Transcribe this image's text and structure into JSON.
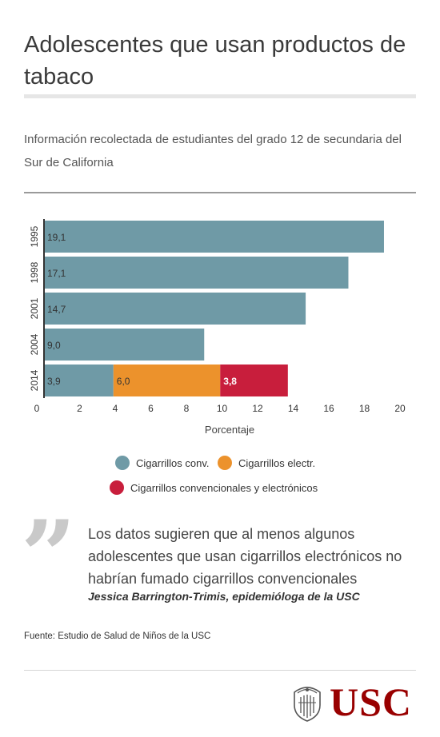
{
  "title": "Adolescentes que usan productos de tabaco",
  "subtitle": "Información recolectada de estudiantes del grado 12 de secundaria del Sur de California",
  "chart_data": {
    "type": "bar",
    "orientation": "horizontal",
    "stacked": true,
    "categories": [
      "1995",
      "1998",
      "2001",
      "2004",
      "2014"
    ],
    "series": [
      {
        "name": "Cigarrillos conv.",
        "color": "#6f9aa6",
        "values": [
          19.1,
          17.1,
          14.7,
          9.0,
          3.9
        ]
      },
      {
        "name": "Cigarrillos electr.",
        "color": "#ec922c",
        "values": [
          0,
          0,
          0,
          0,
          6.0
        ]
      },
      {
        "name": "Cigarrillos convencionales y electrónicos",
        "color": "#c81e3c",
        "values": [
          0,
          0,
          0,
          0,
          3.8
        ]
      }
    ],
    "value_labels": [
      [
        "19,1",
        "",
        ""
      ],
      [
        "17,1",
        "",
        ""
      ],
      [
        "14,7",
        "",
        ""
      ],
      [
        "9,0",
        "",
        ""
      ],
      [
        "3,9",
        "6,0",
        "3,8"
      ]
    ],
    "xlabel": "Porcentaje",
    "ylabel": "",
    "xlim": [
      0,
      20
    ],
    "xticks": [
      0,
      2,
      4,
      6,
      8,
      10,
      12,
      14,
      16,
      18,
      20
    ],
    "grid": false,
    "legend_position": "bottom"
  },
  "legend": [
    {
      "label": "Cigarrillos conv.",
      "color": "#6f9aa6"
    },
    {
      "label": "Cigarrillos electr.",
      "color": "#ec922c"
    },
    {
      "label": "Cigarrillos convencionales y electrónicos",
      "color": "#c81e3c"
    }
  ],
  "quote": {
    "mark": "”",
    "text": "Los datos sugieren que al menos algunos adolescentes que usan cigarrillos electrónicos no habrían fumado cigarrillos convencionales",
    "author": "Jessica Barrington-Trimis, epidemióloga de la USC"
  },
  "source": "Fuente: Estudio de Salud de Niños de la USC",
  "logo": {
    "text": "USC",
    "icon": "usc-seal-icon",
    "color": "#990000"
  }
}
